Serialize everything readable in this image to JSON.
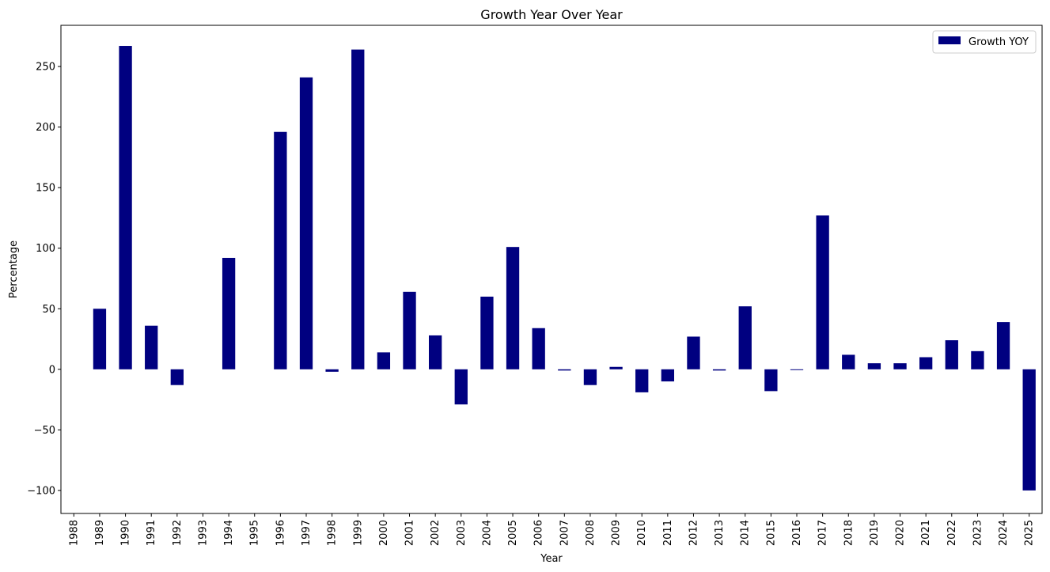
{
  "chart_data": {
    "type": "bar",
    "title": "Growth Year Over Year",
    "xlabel": "Year",
    "ylabel": "Percentage",
    "categories": [
      "1988",
      "1989",
      "1990",
      "1991",
      "1992",
      "1993",
      "1994",
      "1995",
      "1996",
      "1997",
      "1998",
      "1999",
      "2000",
      "2001",
      "2002",
      "2003",
      "2004",
      "2005",
      "2006",
      "2007",
      "2008",
      "2009",
      "2010",
      "2011",
      "2012",
      "2013",
      "2014",
      "2015",
      "2016",
      "2017",
      "2018",
      "2019",
      "2020",
      "2021",
      "2022",
      "2023",
      "2024",
      "2025"
    ],
    "series": [
      {
        "name": "Growth YOY",
        "color": "#000080",
        "values": [
          0,
          50,
          267,
          36,
          -13,
          0,
          92,
          0,
          196,
          241,
          -2,
          264,
          14,
          64,
          28,
          -29,
          60,
          101,
          34,
          -1,
          -13,
          2,
          -19,
          -10,
          27,
          -1,
          52,
          -18,
          -0.5,
          127,
          12,
          5,
          5,
          10,
          24,
          15,
          39,
          -100
        ]
      }
    ],
    "ylim": [
      -119,
      284
    ],
    "yticks": [
      -100,
      -50,
      0,
      50,
      100,
      150,
      200,
      250
    ],
    "ytick_labels": [
      "−100",
      "−50",
      "0",
      "50",
      "100",
      "150",
      "200",
      "250"
    ],
    "legend_placement": "top-right",
    "grid": false
  }
}
